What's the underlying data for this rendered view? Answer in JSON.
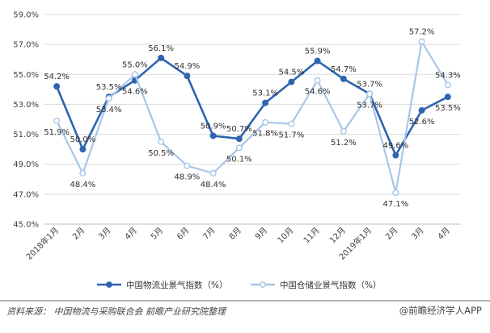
{
  "chart_data": {
    "type": "line",
    "categories": [
      "2018年1月",
      "2月",
      "3月",
      "4月",
      "5月",
      "6月",
      "7月",
      "8月",
      "9月",
      "10月",
      "11月",
      "12月",
      "2019年1月",
      "2月",
      "3月",
      "4月"
    ],
    "series": [
      {
        "name": "中国物流业景气指数（%）",
        "color": "#2e64b0",
        "values": [
          54.2,
          50.0,
          53.5,
          54.6,
          56.1,
          54.9,
          50.9,
          50.7,
          53.1,
          54.5,
          55.9,
          54.7,
          53.7,
          49.6,
          52.6,
          53.5
        ],
        "labels": [
          "54.2%",
          "50.0%",
          "53.5%",
          "54.6%",
          "56.1%",
          "54.9%",
          "50.9%",
          "50.7%",
          "53.1%",
          "54.5%",
          "55.9%",
          "54.7%",
          "53.7%",
          "49.6%",
          "52.6%",
          "53.5%"
        ]
      },
      {
        "name": "中国仓储业景气指数（%）",
        "color": "#a7c6e6",
        "values": [
          51.9,
          48.4,
          53.4,
          55.0,
          50.5,
          48.9,
          48.4,
          50.1,
          51.8,
          51.7,
          54.6,
          51.2,
          53.7,
          47.1,
          57.2,
          54.3
        ],
        "labels": [
          "51.9%",
          "48.4%",
          "53.4%",
          "55.0%",
          "50.5%",
          "48.9%",
          "48.4%",
          "50.1%",
          "51.8%",
          "51.7%",
          "54.6%",
          "51.2%",
          "53.7%",
          "47.1%",
          "57.2%",
          "54.3%"
        ]
      }
    ],
    "yticks": [
      "45.0%",
      "47.0%",
      "49.0%",
      "51.0%",
      "53.0%",
      "55.0%",
      "57.0%",
      "59.0%"
    ],
    "ylim": [
      45,
      59
    ],
    "grid": "horizontal",
    "legend": "bottom-center"
  },
  "footer": {
    "source": "资料来源：  中国物流与采购联合会 前瞻产业研究院整理",
    "brand": "@前瞻经济学人APP"
  }
}
